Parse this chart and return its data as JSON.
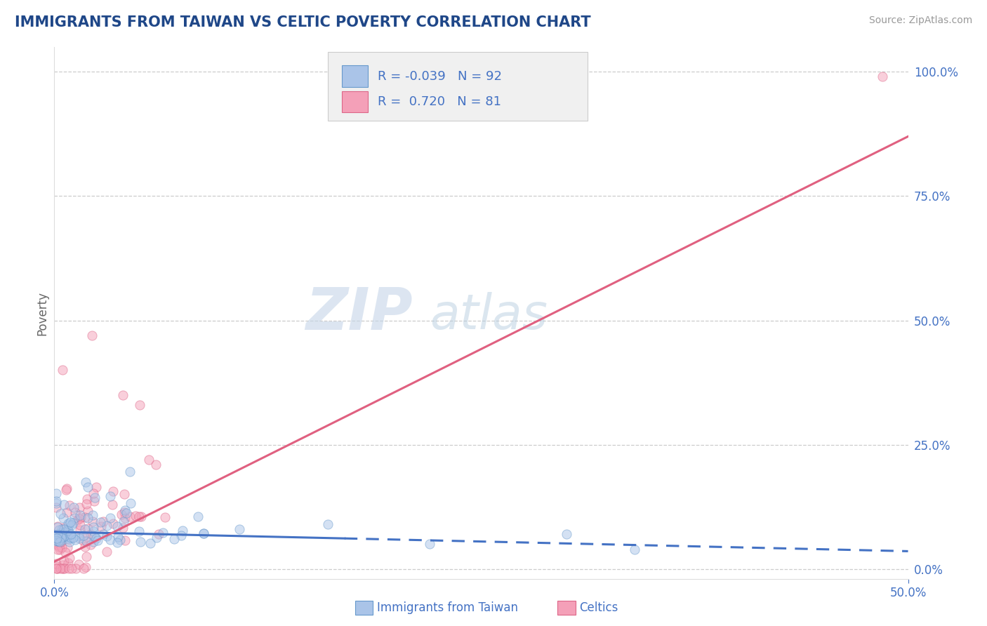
{
  "title": "IMMIGRANTS FROM TAIWAN VS CELTIC POVERTY CORRELATION CHART",
  "source": "Source: ZipAtlas.com",
  "ylabel": "Poverty",
  "ytick_vals": [
    0.0,
    0.25,
    0.5,
    0.75,
    1.0
  ],
  "xlim": [
    0.0,
    0.5
  ],
  "ylim": [
    -0.02,
    1.05
  ],
  "watermark_zip": "ZIP",
  "watermark_atlas": "atlas",
  "series1_name": "Immigrants from Taiwan",
  "series1_color": "#aac4e8",
  "series1_edge": "#6699cc",
  "series1_R": -0.039,
  "series1_N": 92,
  "series1_line_color": "#4472c4",
  "series2_name": "Celtics",
  "series2_color": "#f4a0b8",
  "series2_edge": "#dd6688",
  "series2_R": 0.72,
  "series2_N": 81,
  "series2_line_color": "#e06080",
  "title_color": "#1f4788",
  "axis_label_color": "#4472c4",
  "random_seed": 42,
  "dot_size": 90,
  "dot_alpha": 0.5,
  "grid_color": "#cccccc",
  "legend_box_color": "#f0f0f0",
  "legend_border_color": "#cccccc"
}
